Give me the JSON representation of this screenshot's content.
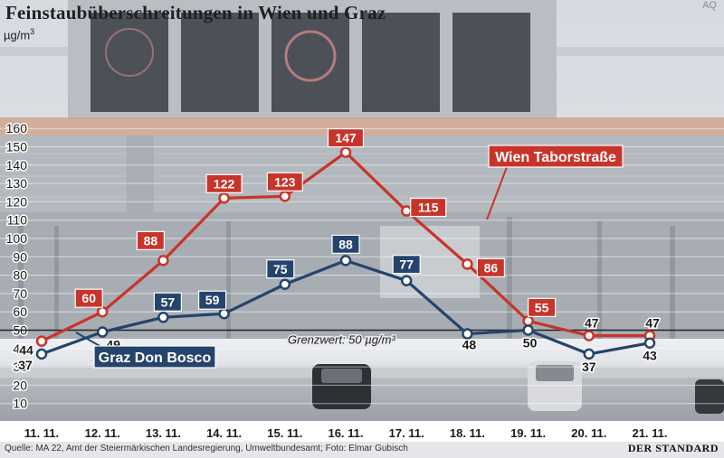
{
  "title": "Feinstaubüberschreitungen in Wien und Graz",
  "credit": "AQ",
  "unit": {
    "base": "µg/m",
    "exponent": "3"
  },
  "source": "Quelle: MA 22, Amt der Steiermärkischen Landesregierung, Umweltbundesamt; Foto: Elmar Gubisch",
  "publisher": "DER STANDARD",
  "chart_data": {
    "type": "line",
    "title": "Feinstaubüberschreitungen in Wien und Graz",
    "ylabel": "µg/m3",
    "xlabel": "",
    "categories": [
      "11. 11.",
      "12. 11.",
      "13. 11.",
      "14. 11.",
      "15. 11.",
      "16. 11.",
      "17. 11.",
      "18. 11.",
      "19. 11.",
      "20. 11.",
      "21. 11."
    ],
    "ylim": [
      0,
      160
    ],
    "yticks": [
      10,
      20,
      30,
      40,
      50,
      60,
      70,
      80,
      90,
      100,
      110,
      120,
      130,
      140,
      150,
      160
    ],
    "grid": true,
    "series": [
      {
        "name": "Wien Taborstraße",
        "color": "#c8342a",
        "values": [
          44,
          60,
          88,
          122,
          123,
          147,
          115,
          86,
          55,
          47,
          47
        ]
      },
      {
        "name": "Graz Don Bosco",
        "color": "#25446b",
        "values": [
          37,
          49,
          57,
          59,
          75,
          88,
          77,
          48,
          50,
          37,
          43
        ]
      }
    ],
    "threshold": {
      "value": 50,
      "label": "Grenzwert: 50 µg/m³"
    }
  }
}
